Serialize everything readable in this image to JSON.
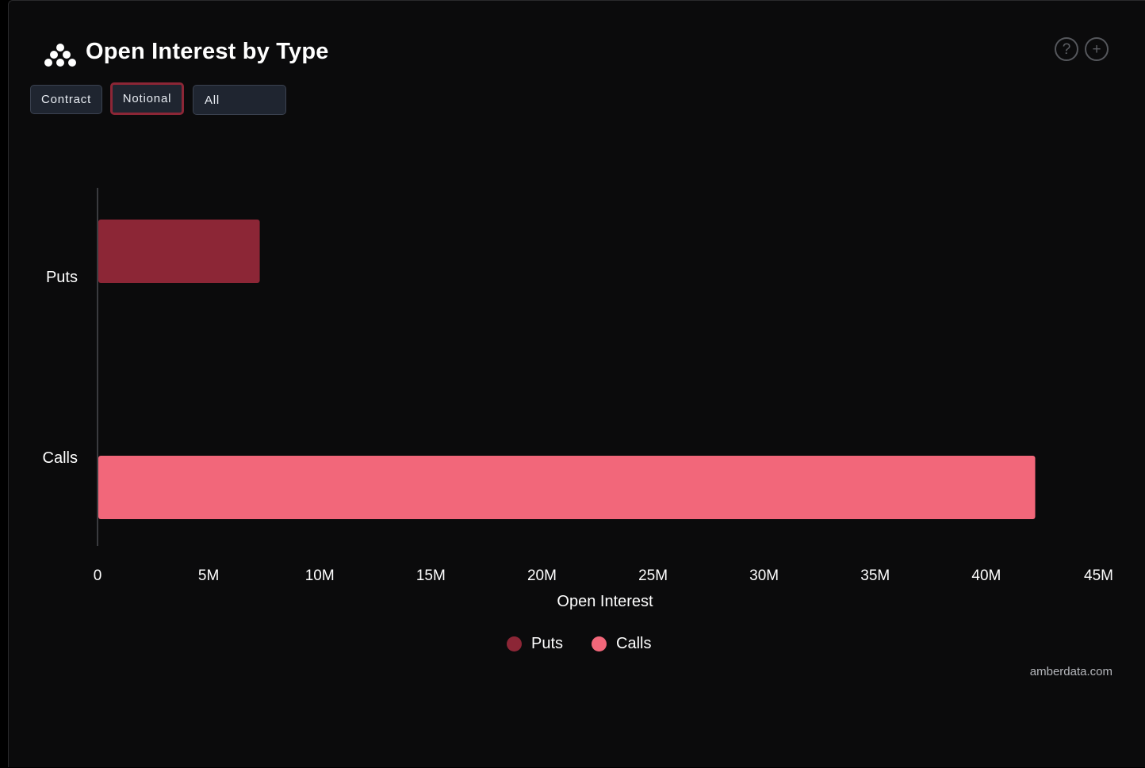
{
  "header": {
    "title": "Open Interest by Type"
  },
  "controls": {
    "contract_label": "Contract",
    "notional_label": "Notional",
    "active": "Notional",
    "filter_value": "All"
  },
  "icons": {
    "logo": "amberdata-logo-icon",
    "help": "question-circle-icon",
    "add": "plus-circle-icon"
  },
  "chart_data": {
    "type": "bar",
    "orientation": "horizontal",
    "categories": [
      "Puts",
      "Calls"
    ],
    "values": [
      7300000,
      42200000
    ],
    "colors": [
      "#8c2636",
      "#f2677a"
    ],
    "xlabel": "Open Interest",
    "ylabel": "",
    "xlim": [
      0,
      45000000
    ],
    "x_ticks": [
      0,
      5000000,
      10000000,
      15000000,
      20000000,
      25000000,
      30000000,
      35000000,
      40000000,
      45000000
    ],
    "x_tick_labels": [
      "0",
      "5M",
      "10M",
      "15M",
      "20M",
      "25M",
      "30M",
      "35M",
      "40M",
      "45M"
    ],
    "grid": false,
    "legend": {
      "placement": "bottom-center",
      "entries": [
        {
          "label": "Puts",
          "color": "#8c2636"
        },
        {
          "label": "Calls",
          "color": "#f2677a"
        }
      ]
    }
  },
  "footer": {
    "credit": "amberdata.com"
  }
}
